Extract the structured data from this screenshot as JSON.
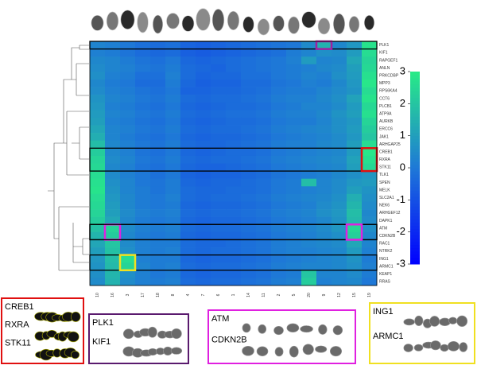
{
  "chart_data": {
    "type": "heatmap",
    "columns": [
      "10",
      "16",
      "3",
      "17",
      "18",
      "8",
      "4",
      "7",
      "6",
      "1",
      "14",
      "11",
      "2",
      "5",
      "20",
      "9",
      "12",
      "15",
      "19"
    ],
    "rows": [
      "PLK1",
      "KIF1",
      "RAPGEF1",
      "ANLN",
      "PRKCDBP",
      "MPP3",
      "RPS6KA4",
      "CCT6",
      "PLCB1",
      "ATP9A",
      "AURKB",
      "ERCC6",
      "JAK1",
      "ARHGAP25",
      "CREB1",
      "RXRA",
      "STK11",
      "TLK1",
      "SPEN",
      "MELK",
      "SLC2A1",
      "NEK6",
      "ARHGEF12",
      "DAPK1",
      "ATM",
      "CDKN2B",
      "RAC1",
      "NTRK2",
      "ING1",
      "ARMC1",
      "KEAP1",
      "RRAS"
    ],
    "values": [
      [
        0.3,
        0.2,
        0,
        -0.2,
        -0.3,
        -0.2,
        -0.5,
        -0.6,
        -0.5,
        -0.4,
        -0.3,
        -0.2,
        -0.1,
        0,
        0.5,
        1.5,
        0.4,
        0.8,
        2.8
      ],
      [
        0.2,
        0.1,
        -0.1,
        -0.3,
        -0.4,
        -0.3,
        -0.6,
        -0.7,
        -0.6,
        -0.5,
        -0.4,
        -0.3,
        -0.2,
        0.1,
        0.3,
        0.6,
        0.5,
        0.9,
        2.6
      ],
      [
        0.4,
        0.3,
        0.1,
        -0.1,
        -0.2,
        0,
        -0.4,
        -0.5,
        -0.4,
        -0.3,
        -0.2,
        -0.1,
        0,
        0.2,
        0.9,
        0.3,
        0.4,
        1.2,
        2.4
      ],
      [
        0.5,
        0.3,
        0.2,
        0,
        -0.1,
        0.1,
        -0.3,
        -0.4,
        -0.5,
        -0.3,
        -0.2,
        -0.1,
        0,
        0.1,
        0.2,
        0.4,
        0.5,
        1.0,
        2.5
      ],
      [
        0.6,
        0.2,
        0.1,
        -0.2,
        -0.2,
        0.2,
        -0.3,
        -0.5,
        -0.4,
        -0.4,
        -0.2,
        -0.2,
        0,
        0.1,
        0.3,
        0.2,
        0.6,
        0.9,
        2.7
      ],
      [
        0.4,
        0.1,
        0,
        -0.3,
        -0.3,
        0.1,
        -0.4,
        -0.6,
        -0.5,
        -0.5,
        -0.3,
        -0.3,
        -0.1,
        0,
        0.2,
        0.1,
        0.4,
        0.8,
        2.9
      ],
      [
        0.5,
        0.2,
        0.1,
        -0.1,
        -0.2,
        0,
        -0.5,
        -0.5,
        -0.4,
        -0.4,
        -0.3,
        -0.2,
        0,
        0.1,
        0.1,
        0.3,
        0.5,
        0.7,
        2.6
      ],
      [
        0.7,
        0.3,
        0.2,
        0,
        -0.1,
        0.1,
        -0.3,
        -0.4,
        -0.3,
        -0.3,
        -0.2,
        -0.1,
        0.1,
        0.2,
        0.2,
        0.4,
        0.6,
        1.1,
        2.8
      ],
      [
        0.8,
        0.2,
        0.1,
        -0.1,
        -0.2,
        0,
        -0.4,
        -0.5,
        -0.4,
        -0.3,
        -0.3,
        -0.2,
        0,
        0.1,
        0.3,
        0.3,
        0.5,
        0.9,
        2.5
      ],
      [
        0.9,
        0.3,
        0.2,
        0,
        -0.1,
        0.1,
        -0.3,
        -0.4,
        -0.3,
        -0.2,
        -0.2,
        -0.1,
        0.1,
        0.2,
        0.2,
        0.4,
        0.7,
        1.0,
        2.7
      ],
      [
        1.0,
        0.2,
        0.1,
        -0.1,
        -0.2,
        0,
        -0.4,
        -0.5,
        -0.4,
        -0.3,
        -0.3,
        -0.2,
        0,
        0.1,
        0.1,
        0.3,
        0.6,
        0.8,
        2.4
      ],
      [
        1.2,
        0.3,
        0.2,
        0,
        -0.1,
        0.1,
        -0.3,
        -0.4,
        -0.3,
        -0.3,
        -0.2,
        -0.1,
        0.1,
        0.2,
        0.3,
        0.4,
        0.6,
        0.9,
        2.2
      ],
      [
        1.4,
        0.3,
        0.1,
        -0.1,
        -0.2,
        0,
        -0.4,
        -0.5,
        -0.4,
        -0.4,
        -0.3,
        -0.2,
        0,
        0.1,
        0.2,
        0.3,
        0.5,
        0.8,
        2.0
      ],
      [
        1.8,
        0.4,
        0.2,
        0,
        -0.1,
        0.1,
        -0.3,
        -0.4,
        -0.4,
        -0.3,
        -0.2,
        -0.1,
        0.1,
        0.2,
        0.2,
        0.4,
        0.5,
        1.0,
        2.6
      ],
      [
        2.2,
        0.4,
        0.2,
        -0.1,
        -0.2,
        0,
        -0.4,
        -0.5,
        -0.4,
        -0.3,
        -0.3,
        -0.2,
        0,
        0.1,
        0.2,
        0.3,
        0.4,
        0.9,
        2.9
      ],
      [
        2.4,
        0.5,
        0.3,
        0,
        -0.1,
        0.1,
        -0.3,
        -0.4,
        -0.3,
        -0.3,
        -0.2,
        -0.1,
        0.1,
        0.2,
        0.3,
        0.4,
        0.5,
        1.1,
        2.7
      ],
      [
        2.5,
        0.4,
        0.2,
        -0.1,
        -0.2,
        0,
        -0.4,
        -0.5,
        -0.5,
        -0.4,
        -0.3,
        -0.2,
        0,
        0.1,
        0.2,
        0.3,
        0.4,
        1.0,
        2.5
      ],
      [
        2.6,
        0.5,
        0.2,
        0,
        -0.2,
        0,
        -0.5,
        -0.6,
        -0.5,
        -0.5,
        -0.4,
        -0.3,
        -0.1,
        0,
        0.1,
        0.2,
        0.4,
        0.6,
        0.8
      ],
      [
        2.7,
        0.6,
        0.3,
        0,
        -0.1,
        0.1,
        -0.4,
        -0.5,
        -0.4,
        -0.4,
        -0.3,
        -0.2,
        0,
        0.1,
        1.8,
        0.3,
        0.5,
        0.8,
        0.9
      ],
      [
        2.8,
        0.7,
        0.3,
        0.1,
        -0.1,
        0.1,
        -0.3,
        -0.4,
        -0.4,
        -0.3,
        -0.3,
        -0.2,
        0,
        0.1,
        0.2,
        0.3,
        0.5,
        1.0,
        0.7
      ],
      [
        2.6,
        0.8,
        0.4,
        0.1,
        0,
        0.2,
        -0.3,
        -0.4,
        -0.3,
        -0.3,
        -0.2,
        -0.1,
        0.1,
        0.2,
        0.3,
        0.4,
        0.6,
        1.4,
        0.6
      ],
      [
        2.5,
        0.9,
        0.4,
        0.1,
        0,
        0.1,
        -0.4,
        -0.5,
        -0.4,
        -0.4,
        -0.3,
        -0.2,
        0,
        0.1,
        0.2,
        0.5,
        0.7,
        1.6,
        0.5
      ],
      [
        2.4,
        1.0,
        0.5,
        0.2,
        0.1,
        0.2,
        -0.3,
        -0.4,
        -0.3,
        -0.3,
        -0.2,
        -0.1,
        0.1,
        0.2,
        0.3,
        0.6,
        0.8,
        1.8,
        0.4
      ],
      [
        2.2,
        1.2,
        0.4,
        0.1,
        0,
        0.1,
        -0.4,
        -0.5,
        -0.4,
        -0.4,
        -0.3,
        -0.2,
        0,
        0.1,
        0.2,
        0.4,
        0.7,
        1.7,
        0.5
      ],
      [
        1.9,
        2.4,
        0.5,
        0.2,
        0.1,
        0.2,
        -0.3,
        -0.4,
        -0.3,
        -0.3,
        -0.2,
        -0.1,
        0.1,
        0.2,
        0.3,
        0.5,
        0.8,
        2.5,
        0.6
      ],
      [
        1.6,
        2.2,
        0.4,
        0.1,
        0,
        0.1,
        -0.4,
        -0.5,
        -0.4,
        -0.4,
        -0.3,
        -0.2,
        0,
        0.1,
        0.2,
        0.4,
        0.6,
        2.3,
        0.4
      ],
      [
        1.2,
        2.0,
        0.5,
        0.2,
        0.1,
        0.1,
        -0.3,
        -0.4,
        -0.4,
        -0.3,
        -0.2,
        -0.1,
        0.1,
        0.2,
        0.3,
        0.4,
        0.5,
        1.2,
        0.3
      ],
      [
        1.0,
        1.9,
        0.6,
        0.2,
        0.1,
        0.2,
        -0.3,
        -0.4,
        -0.3,
        -0.3,
        -0.2,
        -0.1,
        0.1,
        0.2,
        0.2,
        0.3,
        0.4,
        0.9,
        0.2
      ],
      [
        0.8,
        1.8,
        2.6,
        0.2,
        0.1,
        0.1,
        -0.4,
        -0.5,
        -0.4,
        -0.4,
        -0.3,
        -0.2,
        0,
        0.1,
        0.2,
        0.3,
        0.4,
        0.7,
        0.1
      ],
      [
        0.7,
        1.7,
        2.4,
        0.3,
        0.1,
        0.2,
        -0.3,
        -0.4,
        -0.3,
        -0.3,
        -0.2,
        -0.1,
        0.1,
        0.2,
        0.3,
        0.3,
        0.4,
        0.6,
        0.2
      ],
      [
        0.6,
        1.6,
        0.6,
        0.2,
        0,
        0.1,
        -0.4,
        -0.5,
        -0.4,
        -0.4,
        -0.3,
        -0.2,
        0,
        0.1,
        2.0,
        0.3,
        0.3,
        0.5,
        0.1
      ],
      [
        0.5,
        1.5,
        0.5,
        0.2,
        0.1,
        0.2,
        -0.3,
        -0.4,
        -0.3,
        -0.3,
        -0.2,
        -0.1,
        0.1,
        0.2,
        2.2,
        0.2,
        0.3,
        0.4,
        0
      ]
    ],
    "colorbar_lim": [
      -3,
      3
    ],
    "colorbar_ticks": [
      3,
      2,
      1,
      0,
      -1,
      -2,
      -3
    ],
    "colors": [
      "#0000ff",
      "#1e78d7",
      "#28eb87"
    ]
  },
  "panels": [
    {
      "labels": [
        "CREB1",
        "RXRA",
        "STK11"
      ],
      "color": "#e01010"
    },
    {
      "labels": [
        "PLK1",
        "KIF1"
      ],
      "color": "#5a1a6e"
    },
    {
      "labels": [
        "ATM",
        "CDKN2B"
      ],
      "color": "#e020e0"
    },
    {
      "labels": [
        "ING1",
        "ARMC1"
      ],
      "color": "#f0e020"
    }
  ]
}
